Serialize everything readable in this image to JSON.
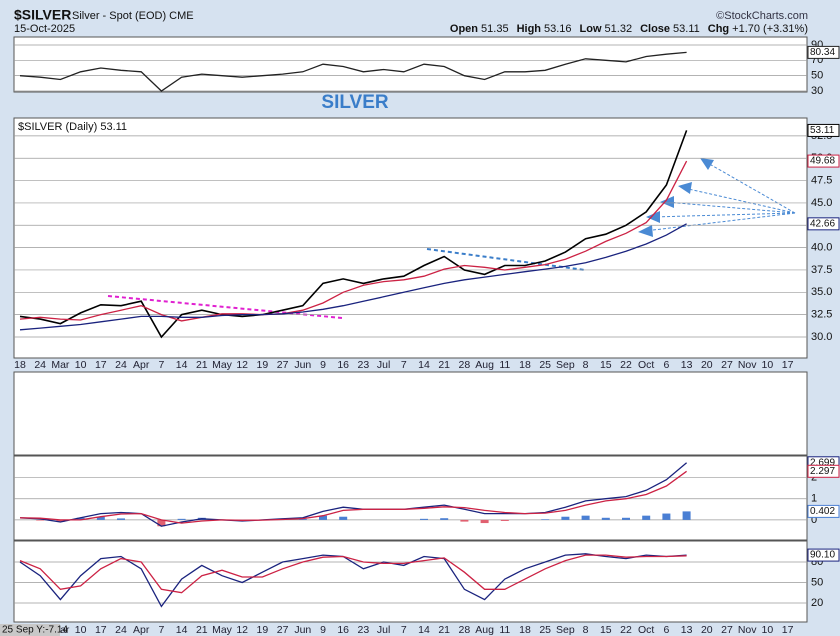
{
  "header": {
    "symbol": "$SILVER",
    "description": "Silver - Spot (EOD) CME",
    "date": "15-Oct-2025",
    "source": "©StockCharts.com",
    "quote": [
      {
        "label": "Open",
        "value": 51.35
      },
      {
        "label": "High",
        "value": 53.16
      },
      {
        "label": "Low",
        "value": 51.32
      },
      {
        "label": "Close",
        "value": 53.11
      },
      {
        "label": "Chg",
        "value": "+1.70 (+3.31%)"
      }
    ],
    "annotation": "SILVER",
    "cursor": "25 Sep Y:-7.14"
  },
  "chart_data": [
    {
      "type": "line",
      "ylim": [
        28.7,
        100.4
      ],
      "yticks": [
        30,
        50,
        70,
        90
      ],
      "grid": true,
      "series": [
        {
          "color": "#222222",
          "last_value_box": true,
          "values": [
            50,
            48,
            45,
            55,
            60,
            57,
            55,
            30,
            48,
            52,
            50,
            48,
            50,
            52,
            55,
            65,
            62,
            55,
            58,
            55,
            65,
            62,
            50,
            45,
            55,
            55,
            57,
            65,
            72,
            70,
            68,
            75,
            78,
            80.34,
            null,
            null,
            null,
            null,
            null
          ]
        }
      ]
    },
    {
      "type": "line",
      "ylim": [
        27.65,
        54.5
      ],
      "yticks": [
        {
          "value": 30,
          "label": "30.0"
        },
        32.5,
        {
          "value": 35,
          "label": "35.0"
        },
        37.5,
        {
          "value": 40,
          "label": "40.0"
        },
        42.5,
        {
          "value": 45,
          "label": "45.0"
        },
        47.5,
        {
          "value": 50,
          "label": "50.0"
        },
        52.5
      ],
      "grid": true,
      "categories": [
        "18",
        "24",
        "Mar",
        "10",
        "17",
        "24",
        "Apr",
        "7",
        "14",
        "21",
        "May",
        "12",
        "19",
        "27",
        "Jun",
        "9",
        "16",
        "23",
        "Jul",
        "7",
        "14",
        "21",
        "28",
        "Aug",
        "11",
        "18",
        "25",
        "Sep",
        "8",
        "15",
        "22",
        "Oct",
        "6",
        "13",
        "20",
        "27",
        "Nov",
        "10",
        "17"
      ],
      "series": [
        {
          "name": "$SILVER (Daily)",
          "color": "#000000",
          "last_value_box": true,
          "values": [
            32.3,
            32.0,
            31.5,
            32.7,
            33.6,
            33.5,
            34.0,
            30.0,
            32.5,
            33.0,
            32.5,
            32.3,
            32.5,
            33.0,
            33.5,
            36.0,
            36.5,
            36.0,
            36.5,
            36.8,
            38.0,
            39.0,
            37.5,
            37.0,
            38.0,
            38.0,
            38.5,
            39.5,
            41.0,
            41.5,
            42.5,
            44.0,
            47.0,
            53.11,
            null,
            null,
            null,
            null,
            null
          ]
        },
        {
          "color": "#cc2244",
          "last_value_box": true,
          "values": [
            32.0,
            32.2,
            32.0,
            31.9,
            32.5,
            33.0,
            33.5,
            32.5,
            31.8,
            32.2,
            32.6,
            32.6,
            32.5,
            32.6,
            33.0,
            33.8,
            35.0,
            35.8,
            36.2,
            36.4,
            36.8,
            37.6,
            38.0,
            37.8,
            37.5,
            37.8,
            38.1,
            38.7,
            39.6,
            40.7,
            41.6,
            42.8,
            45.3,
            49.68,
            null,
            null,
            null,
            null,
            null
          ]
        },
        {
          "color": "#1a237e",
          "last_value_box": true,
          "values": [
            30.8,
            31.0,
            31.2,
            31.4,
            31.7,
            32.0,
            32.3,
            32.3,
            32.2,
            32.2,
            32.4,
            32.5,
            32.5,
            32.6,
            32.8,
            33.1,
            33.5,
            34.0,
            34.5,
            35.0,
            35.5,
            36.0,
            36.4,
            36.7,
            37.0,
            37.3,
            37.6,
            37.9,
            38.3,
            38.9,
            39.6,
            40.4,
            41.4,
            42.66,
            null,
            null,
            null,
            null,
            null
          ]
        }
      ]
    },
    {
      "type": "line",
      "ylim": [
        -0.95,
        3.02
      ],
      "yticks": [
        0,
        1,
        2
      ],
      "grid": true,
      "series": [
        {
          "style": "bar",
          "color": "#4a7fd4",
          "neg_color": "#e06070",
          "last_value_box": true,
          "values": [
            0,
            -0.03,
            -0.1,
            0.1,
            0.15,
            0.07,
            0,
            -0.3,
            0.05,
            0.1,
            0,
            -0.03,
            0.01,
            0.03,
            0.04,
            0.2,
            0.15,
            0,
            0,
            0,
            0.05,
            0.08,
            -0.08,
            -0.15,
            -0.05,
            0,
            0.03,
            0.15,
            0.2,
            0.1,
            0.1,
            0.2,
            0.3,
            0.402,
            null,
            null,
            null,
            null,
            null
          ]
        },
        {
          "color": "#1a237e",
          "last_value_box": true,
          "values": [
            0.1,
            0.05,
            -0.1,
            0.1,
            0.3,
            0.35,
            0.3,
            -0.3,
            -0.1,
            0.05,
            0,
            -0.05,
            0,
            0.05,
            0.1,
            0.4,
            0.6,
            0.5,
            0.5,
            0.5,
            0.6,
            0.7,
            0.5,
            0.3,
            0.3,
            0.3,
            0.35,
            0.6,
            0.9,
            1.0,
            1.1,
            1.4,
            1.9,
            2.699,
            null,
            null,
            null,
            null,
            null
          ]
        },
        {
          "color": "#cc2244",
          "last_value_box": true,
          "values": [
            0.1,
            0.08,
            0,
            0,
            0.15,
            0.28,
            0.3,
            0,
            -0.15,
            -0.05,
            0,
            -0.02,
            -0.01,
            0.02,
            0.06,
            0.2,
            0.45,
            0.5,
            0.5,
            0.5,
            0.55,
            0.62,
            0.58,
            0.45,
            0.35,
            0.3,
            0.32,
            0.45,
            0.7,
            0.9,
            1.0,
            1.2,
            1.6,
            2.297,
            null,
            null,
            null,
            null,
            null
          ]
        }
      ]
    },
    {
      "type": "line",
      "ylim": [
        -7.8,
        110.7
      ],
      "yticks": [
        20,
        50,
        80
      ],
      "grid": true,
      "series": [
        {
          "color": "#1a237e",
          "last_value_box": true,
          "values": [
            80,
            60,
            25,
            60,
            85,
            88,
            70,
            15,
            55,
            75,
            60,
            50,
            65,
            80,
            85,
            90,
            88,
            70,
            80,
            75,
            88,
            85,
            40,
            25,
            55,
            70,
            80,
            90,
            92,
            88,
            85,
            90,
            88,
            90.1,
            null,
            null,
            null,
            null,
            null
          ],
          "value_labels": [
            null,
            null,
            null,
            null,
            null,
            null,
            null,
            null,
            null,
            null,
            null,
            null,
            null,
            null,
            null,
            null,
            null,
            null,
            null,
            null,
            null,
            null,
            null,
            null,
            null,
            null,
            null,
            null,
            null,
            null,
            null,
            null,
            null,
            "90.10",
            null,
            null,
            null,
            null,
            null
          ]
        },
        {
          "color": "#cc2244",
          "values": [
            82,
            70,
            40,
            45,
            70,
            85,
            80,
            40,
            35,
            60,
            68,
            58,
            58,
            70,
            80,
            87,
            88,
            80,
            78,
            78,
            82,
            86,
            65,
            40,
            40,
            55,
            70,
            82,
            90,
            90,
            87,
            88,
            88,
            89,
            null,
            null,
            null,
            null,
            null
          ]
        }
      ]
    }
  ]
}
